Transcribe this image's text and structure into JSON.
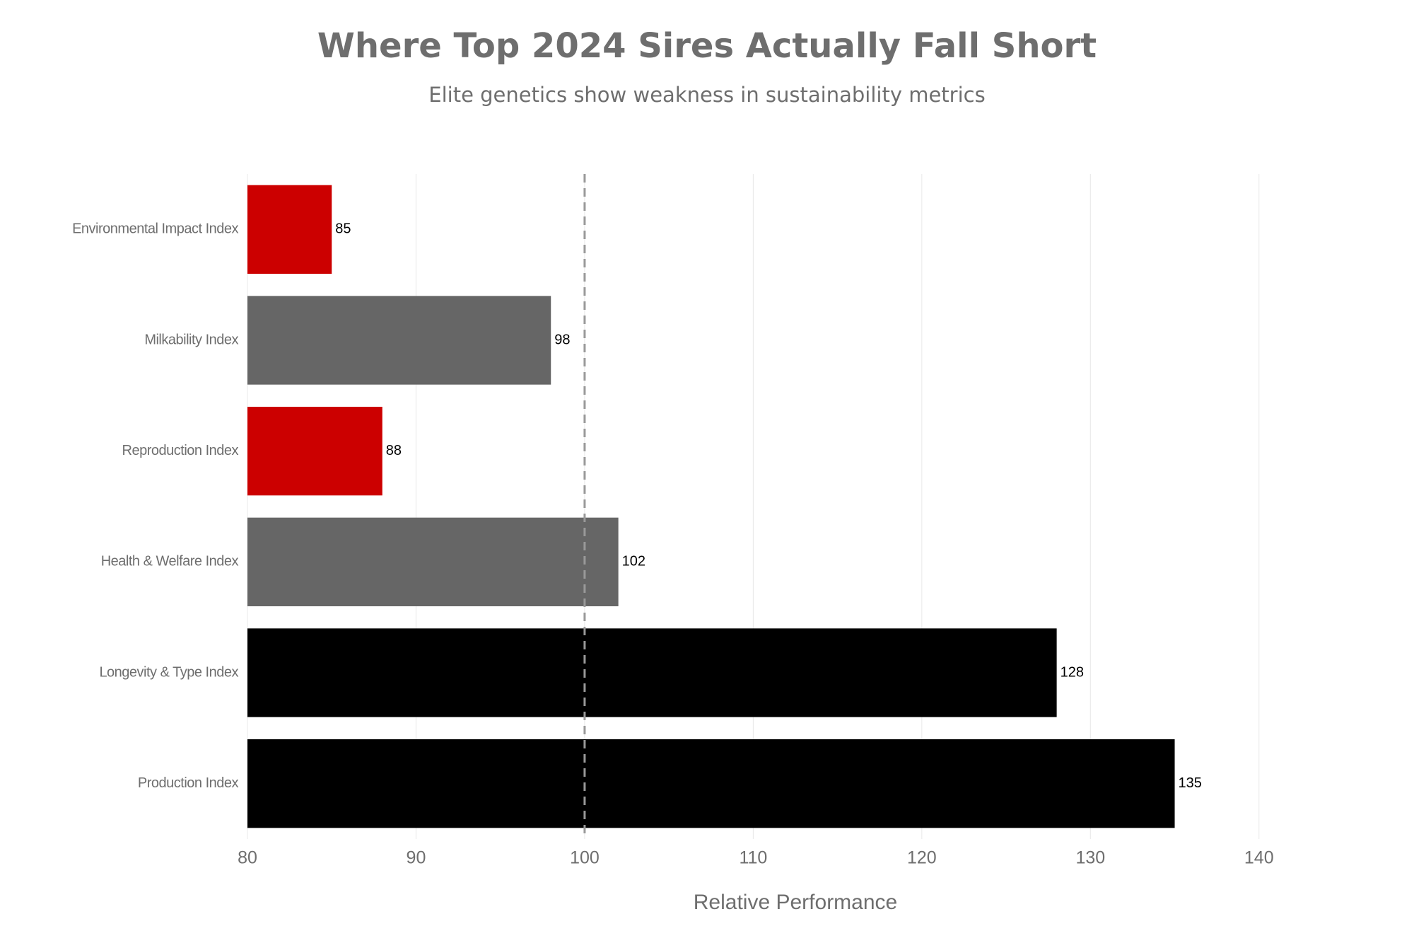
{
  "chart_data": {
    "type": "hbar",
    "title": "Where Top 2024 Sires Actually Fall Short",
    "subtitle": "Elite genetics show weakness in sustainability metrics",
    "x_label": "Relative Performance",
    "categories": [
      "Environmental Impact Index",
      "Milkability Index",
      "Reproduction Index",
      "Health & Welfare Index",
      "Longevity & Type Index",
      "Production Index"
    ],
    "values": [
      85,
      98,
      88,
      102,
      128,
      135
    ],
    "colors": [
      "#cc0000",
      "#666666",
      "#cc0000",
      "#666666",
      "#000000",
      "#000000"
    ],
    "reference_line": 100,
    "xlim": [
      80,
      145
    ],
    "xticks": [
      80,
      90,
      100,
      110,
      120,
      130,
      140
    ],
    "grid": true
  }
}
